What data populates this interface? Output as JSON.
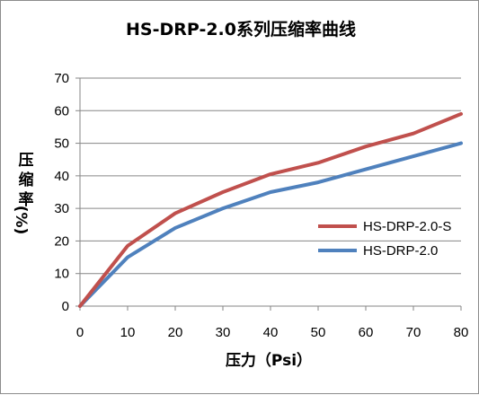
{
  "chart_data": {
    "type": "line",
    "title": "HS-DRP-2.0系列压缩率曲线",
    "xlabel": "压力（Psi）",
    "ylabel_chars": [
      "压",
      "缩",
      "率",
      "(%)"
    ],
    "x": [
      0,
      10,
      20,
      30,
      40,
      50,
      60,
      70,
      80
    ],
    "xlim": [
      0,
      80
    ],
    "ylim": [
      0,
      70
    ],
    "x_ticks": [
      "0",
      "10",
      "20",
      "30",
      "40",
      "50",
      "60",
      "70",
      "80"
    ],
    "y_ticks": [
      "0",
      "10",
      "20",
      "30",
      "40",
      "50",
      "60",
      "70"
    ],
    "grid": true,
    "legend_position": "right",
    "series": [
      {
        "name": "HS-DRP-2.0-S",
        "color": "#c0504d",
        "values": [
          0,
          18.5,
          28.5,
          35,
          40.5,
          44,
          49,
          53,
          59
        ]
      },
      {
        "name": "HS-DRP-2.0",
        "color": "#4f81bd",
        "values": [
          0,
          15,
          24,
          30,
          35,
          38,
          42,
          46,
          50
        ]
      }
    ]
  }
}
